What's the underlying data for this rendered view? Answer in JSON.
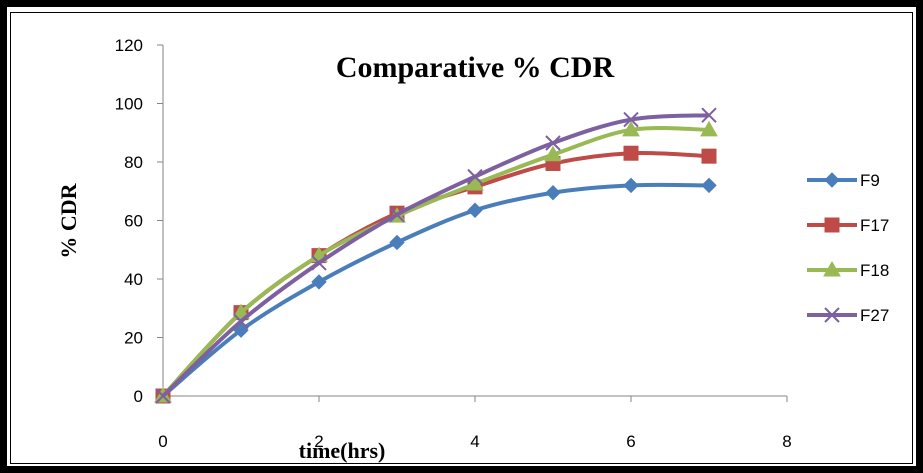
{
  "chart_data": {
    "type": "line",
    "title": "Comparative % CDR",
    "xlabel": "time(hrs)",
    "ylabel": "% CDR",
    "xlim": [
      0,
      8
    ],
    "ylim": [
      0,
      120
    ],
    "xticks": [
      0,
      2,
      4,
      6,
      8
    ],
    "yticks": [
      0,
      20,
      40,
      60,
      80,
      100,
      120
    ],
    "grid": false,
    "legend_position": "right",
    "x": [
      0,
      1,
      2,
      3,
      4,
      5,
      6,
      7
    ],
    "series": [
      {
        "name": "F9",
        "color": "#4a7ebb",
        "marker": "diamond",
        "values": [
          0,
          22.5,
          39,
          52.5,
          63.5,
          69.5,
          72,
          72
        ]
      },
      {
        "name": "F17",
        "color": "#be4b48",
        "marker": "square",
        "values": [
          0,
          28.5,
          48,
          62.5,
          71.5,
          79.5,
          83,
          82
        ]
      },
      {
        "name": "F18",
        "color": "#98b954",
        "marker": "triangle",
        "values": [
          0,
          28.5,
          48,
          61.5,
          72.5,
          82.5,
          91,
          91
        ]
      },
      {
        "name": "F27",
        "color": "#7d60a0",
        "marker": "x",
        "values": [
          0,
          25.5,
          45.5,
          62,
          75,
          86.5,
          94.5,
          96
        ]
      }
    ]
  }
}
